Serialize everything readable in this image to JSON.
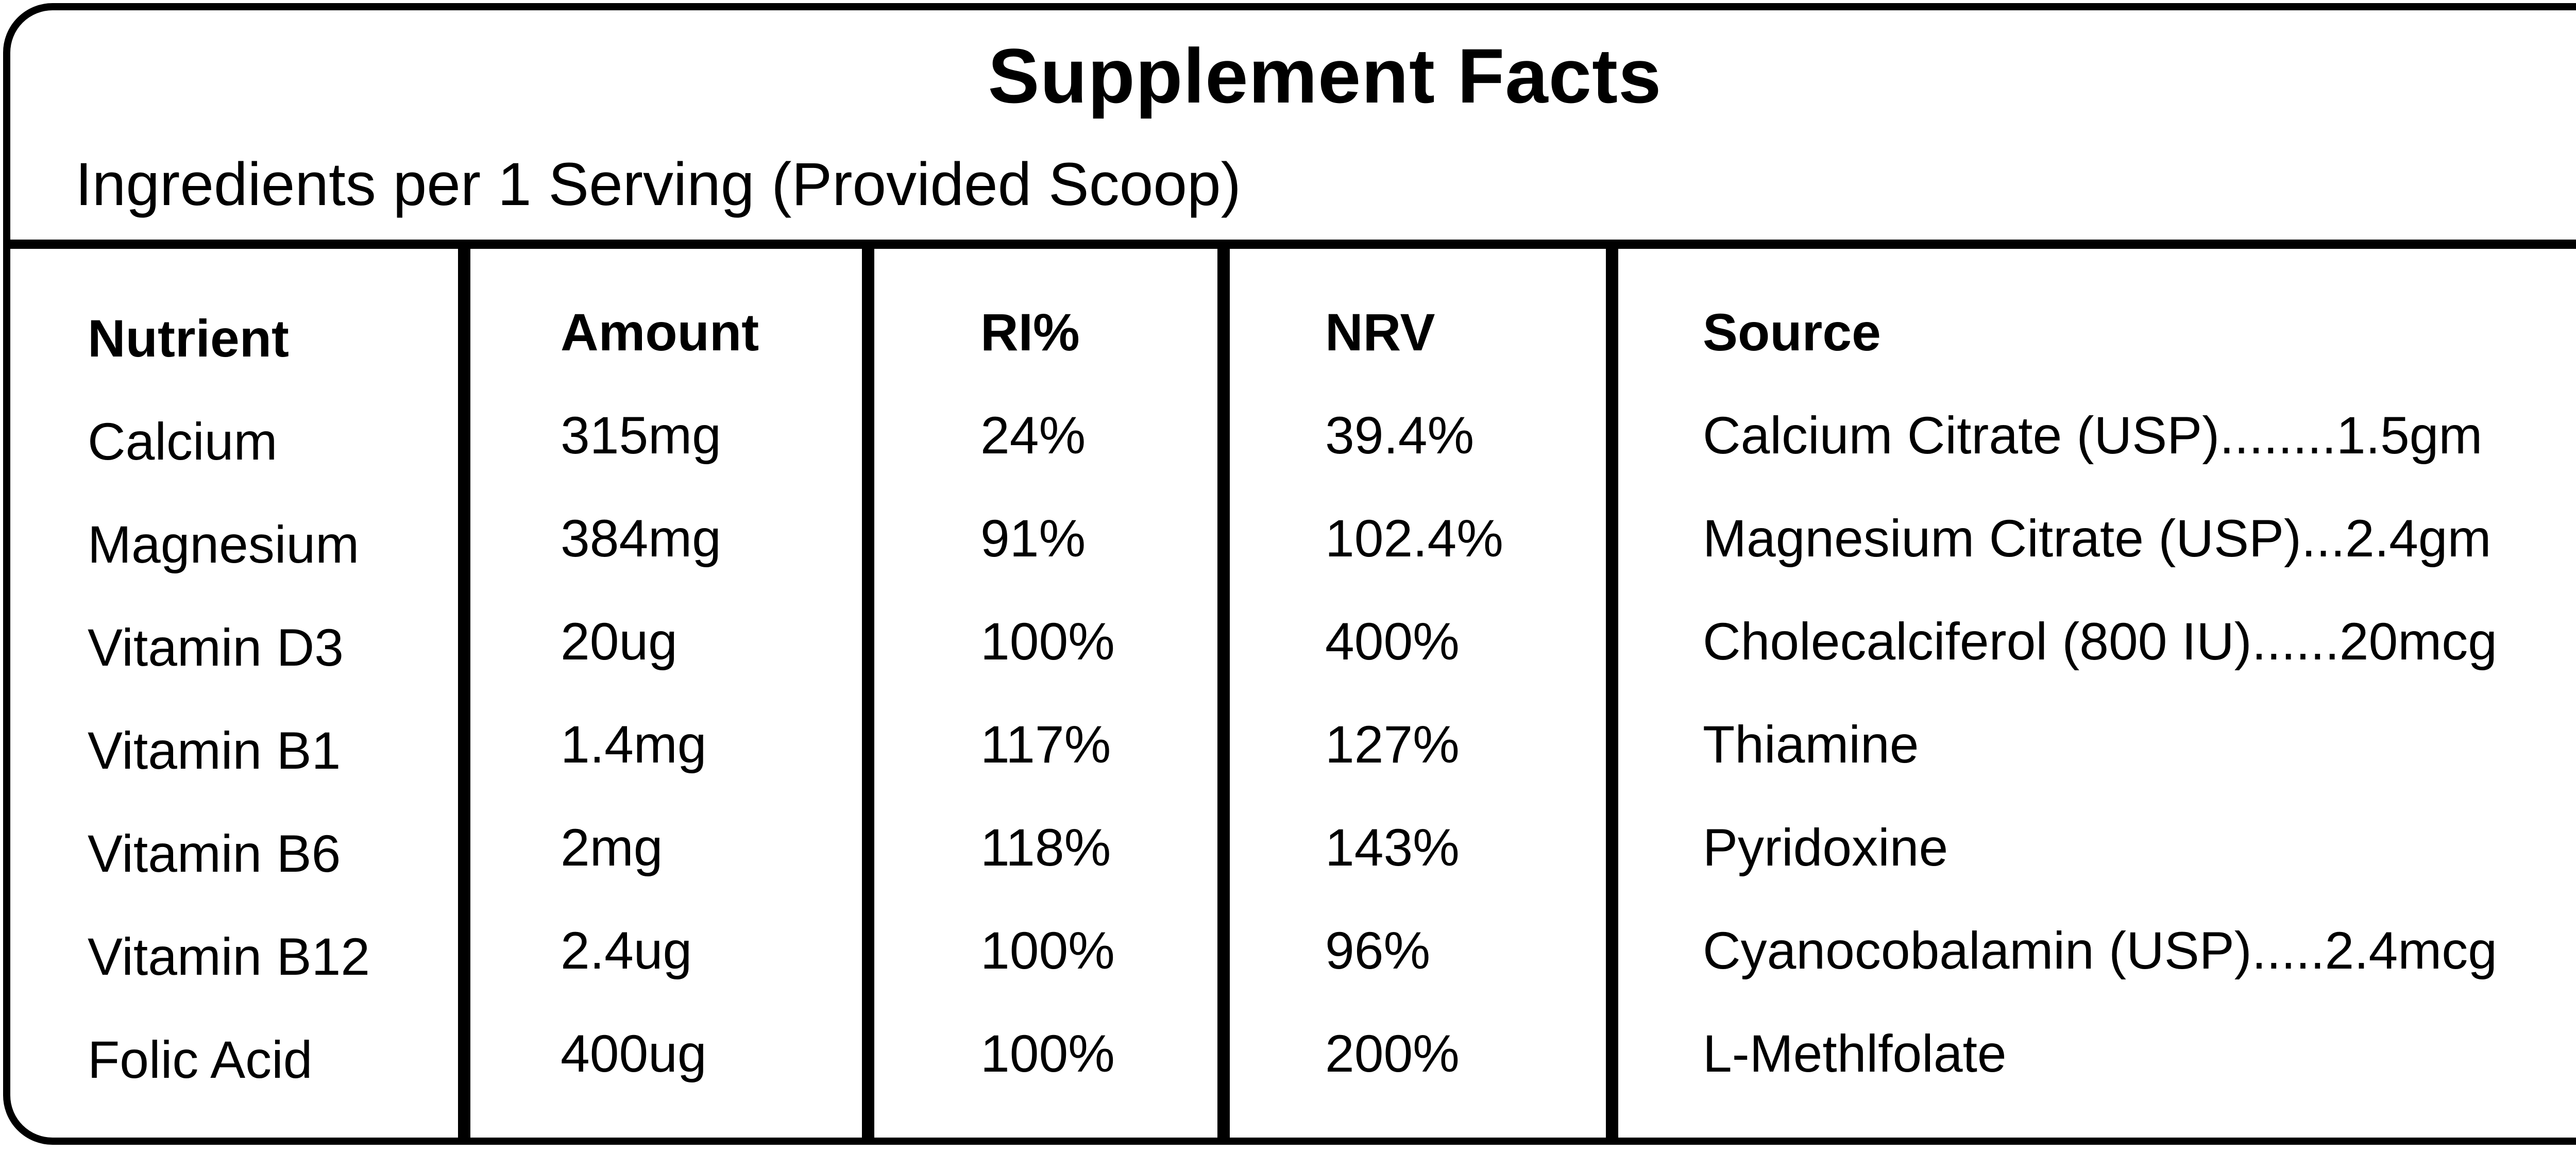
{
  "panel": {
    "title": "Supplement Facts",
    "subtitle": "Ingredients per 1 Serving (Provided Scoop)"
  },
  "table": {
    "headers": {
      "nutrient": "Nutrient",
      "amount": "Amount",
      "ri": "RI%",
      "nrv": "NRV",
      "source": "Source"
    },
    "rows": [
      {
        "nutrient": "Calcium",
        "amount": "315mg",
        "ri": "24%",
        "nrv": "39.4%",
        "source": "Calcium Citrate (USP)........1.5gm"
      },
      {
        "nutrient": "Magnesium",
        "amount": "384mg",
        "ri": "91%",
        "nrv": "102.4%",
        "source": "Magnesium Citrate (USP)...2.4gm"
      },
      {
        "nutrient": "Vitamin D3",
        "amount": "20ug",
        "ri": "100%",
        "nrv": "400%",
        "source": "Cholecalciferol (800 IU)......20mcg"
      },
      {
        "nutrient": "Vitamin B1",
        "amount": "1.4mg",
        "ri": "117%",
        "nrv": "127%",
        "source": "Thiamine"
      },
      {
        "nutrient": "Vitamin B6",
        "amount": "2mg",
        "ri": "118%",
        "nrv": "143%",
        "source": "Pyridoxine"
      },
      {
        "nutrient": "Vitamin B12",
        "amount": "2.4ug",
        "ri": "100%",
        "nrv": "96%",
        "source": "Cyanocobalamin (USP).....2.4mcg"
      },
      {
        "nutrient": "Folic Acid",
        "amount": "400ug",
        "ri": "100%",
        "nrv": "200%",
        "source": "L-Methlfolate"
      }
    ]
  }
}
